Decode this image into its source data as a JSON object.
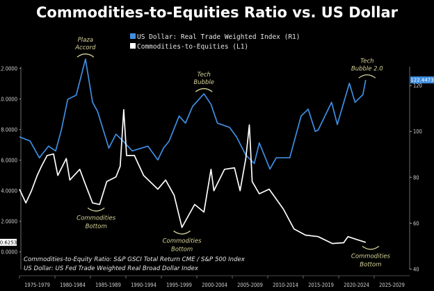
{
  "chart_data": {
    "type": "line",
    "title": "Commodities-to-Equities Ratio vs. US Dollar",
    "x_range": [
      1975,
      2030
    ],
    "x_tick_labels": [
      "1975-1979",
      "1980-1984",
      "1985-1989",
      "1990-1994",
      "1995-1999",
      "2000-2004",
      "2005-2009",
      "2010-2014",
      "2015-2019",
      "2020-2024",
      "2025-2029"
    ],
    "left_axis": {
      "range": [
        -1.15,
        13.2
      ],
      "ticks": [
        0,
        2,
        4,
        6,
        8,
        10,
        12
      ],
      "tick_labels": [
        "0.0000",
        "2.0000",
        "4.0000",
        "6.0000",
        "8.0000",
        "10.0000",
        "12.0000"
      ]
    },
    "right_axis": {
      "range": [
        39.8,
        135.5
      ],
      "ticks": [
        40,
        60,
        80,
        100,
        120
      ],
      "tick_labels": [
        "40",
        "60",
        "80",
        "100",
        "120"
      ]
    },
    "grid": false,
    "legend_position": "top-center",
    "series": [
      {
        "name": "US Dollar: Real Trade Weighted Index (R1)",
        "axis": "right",
        "color": "#3f8fe3",
        "last_value_label": "122.4473",
        "points": [
          [
            1975,
            97.6
          ],
          [
            1976.5,
            95.8
          ],
          [
            1977.8,
            88.5
          ],
          [
            1979.1,
            93.6
          ],
          [
            1980.1,
            91.5
          ],
          [
            1980.9,
            100.6
          ],
          [
            1981.8,
            114
          ],
          [
            1983,
            115.8
          ],
          [
            1984.3,
            131.5
          ],
          [
            1985.3,
            112.7
          ],
          [
            1986,
            108.8
          ],
          [
            1986.7,
            101.8
          ],
          [
            1987.6,
            92.7
          ],
          [
            1988.6,
            98.8
          ],
          [
            1989.6,
            95.8
          ],
          [
            1990.9,
            91.5
          ],
          [
            1993.1,
            93.6
          ],
          [
            1994.5,
            87.6
          ],
          [
            1995.3,
            92.7
          ],
          [
            1996.1,
            95.8
          ],
          [
            1997.5,
            106.7
          ],
          [
            1998.4,
            103.6
          ],
          [
            1999.4,
            110.9
          ],
          [
            2001,
            116.4
          ],
          [
            2002,
            111.8
          ],
          [
            2002.9,
            103.6
          ],
          [
            2004.6,
            101.8
          ],
          [
            2005.6,
            97.6
          ],
          [
            2006.9,
            89.7
          ],
          [
            2008.1,
            86
          ],
          [
            2008.8,
            95
          ],
          [
            2010.3,
            83.6
          ],
          [
            2011.2,
            88.5
          ],
          [
            2013.1,
            88.5
          ],
          [
            2014.7,
            106.7
          ],
          [
            2015.7,
            109.7
          ],
          [
            2016.7,
            100
          ],
          [
            2017.1,
            100.6
          ],
          [
            2019,
            112.7
          ],
          [
            2019.8,
            103
          ],
          [
            2021.5,
            121
          ],
          [
            2022.3,
            112.7
          ],
          [
            2023.4,
            116
          ],
          [
            2023.8,
            122.4473
          ]
        ]
      },
      {
        "name": "Commodities-to-Equities (L1)",
        "axis": "left",
        "color": "#ffffff",
        "last_value_label": "0.6253",
        "points": [
          [
            1975,
            4.1
          ],
          [
            1975.9,
            3.2
          ],
          [
            1976.7,
            4.0
          ],
          [
            1977.5,
            5.0
          ],
          [
            1978.1,
            5.6
          ],
          [
            1978.9,
            6.3
          ],
          [
            1979.8,
            6.4
          ],
          [
            1980.4,
            5.0
          ],
          [
            1981.6,
            6.1
          ],
          [
            1982.1,
            4.7
          ],
          [
            1983.5,
            5.4
          ],
          [
            1984.3,
            4.4
          ],
          [
            1985.3,
            3.2
          ],
          [
            1986.3,
            3.1
          ],
          [
            1987.3,
            4.6
          ],
          [
            1988.6,
            4.9
          ],
          [
            1989.2,
            5.6
          ],
          [
            1989.7,
            9.3
          ],
          [
            1990.1,
            6.3
          ],
          [
            1991.2,
            6.3
          ],
          [
            1992.5,
            5.0
          ],
          [
            1994.5,
            4.1
          ],
          [
            1995.6,
            4.7
          ],
          [
            1996.8,
            3.7
          ],
          [
            1997.9,
            1.6
          ],
          [
            1999.7,
            3.1
          ],
          [
            2001,
            2.6
          ],
          [
            2002,
            5.4
          ],
          [
            2002.4,
            4.0
          ],
          [
            2003.9,
            5.4
          ],
          [
            2005.3,
            5.5
          ],
          [
            2006.1,
            4.0
          ],
          [
            2006.9,
            6.1
          ],
          [
            2007.4,
            8.3
          ],
          [
            2007.8,
            4.6
          ],
          [
            2008.8,
            3.8
          ],
          [
            2010.2,
            4.1
          ],
          [
            2012.2,
            2.8
          ],
          [
            2013.7,
            1.5
          ],
          [
            2015.3,
            1.1
          ],
          [
            2017.1,
            1.0
          ],
          [
            2019.1,
            0.55
          ],
          [
            2020.7,
            0.6
          ],
          [
            2021.3,
            1.0
          ],
          [
            2022.6,
            0.8
          ],
          [
            2023.8,
            0.6253
          ]
        ]
      }
    ],
    "annotations": [
      {
        "lines": [
          "Plaza",
          "Accord"
        ],
        "x": 1984.3,
        "axis": "right",
        "y": 131.5,
        "position": "above"
      },
      {
        "lines": [
          "Tech",
          "Bubble"
        ],
        "x": 2001,
        "axis": "right",
        "y": 116.4,
        "position": "above"
      },
      {
        "lines": [
          "Tech",
          "Bubble 2.0"
        ],
        "x": 2024,
        "axis": "right",
        "y": 122.4,
        "position": "above"
      },
      {
        "lines": [
          "Commodities",
          "Bottom"
        ],
        "x": 1985.8,
        "axis": "left",
        "y": 3.1,
        "position": "below"
      },
      {
        "lines": [
          "Commodities",
          "Bottom"
        ],
        "x": 1997.9,
        "axis": "left",
        "y": 1.6,
        "position": "below"
      },
      {
        "lines": [
          "Commodities",
          "Bottom"
        ],
        "x": 2024.5,
        "axis": "left",
        "y": 0.6,
        "position": "below"
      }
    ],
    "footnotes": [
      "Commodities-to-Equity Ratio: S&P GSCI Total Return CME / S&P 500 Index",
      "US Dollar: US Fed Trade Weighted Real Broad Dollar Index"
    ],
    "annotation_color": "#d9d59b"
  }
}
